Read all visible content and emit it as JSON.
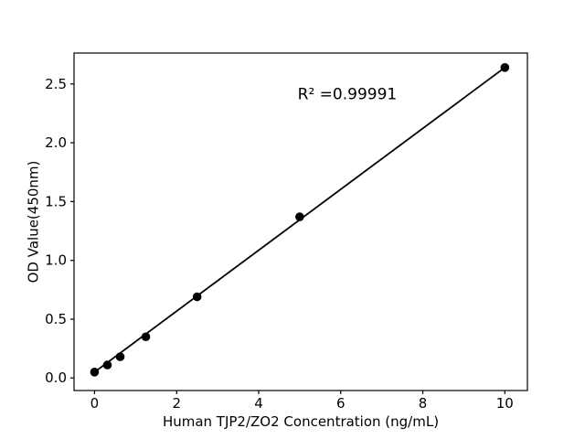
{
  "figure": {
    "background": "#ffffff",
    "foreground": "#000000"
  },
  "chart_data": {
    "type": "scatter",
    "title": "",
    "xlabel": "Human TJP2/ZO2 Concentration (ng/mL)",
    "ylabel": "OD Value(450nm)",
    "annotation": {
      "text": "R² =0.99991",
      "x": 6.16,
      "y": 2.37
    },
    "xlim": [
      -0.5,
      10.55
    ],
    "ylim": [
      -0.107,
      2.763
    ],
    "x_ticks": {
      "values": [
        0,
        2,
        4,
        6,
        8,
        10
      ],
      "labels": [
        "0",
        "2",
        "4",
        "6",
        "8",
        "10"
      ]
    },
    "y_ticks": {
      "values": [
        0,
        0.5,
        1,
        1.5,
        2,
        2.5
      ],
      "labels": [
        "0.0",
        "0.5",
        "1.0",
        "1.5",
        "2.0",
        "2.5"
      ]
    },
    "grid": false,
    "legend": false,
    "series": [
      {
        "name": "standard-curve-points",
        "marker": "circle",
        "color": "#000000",
        "x": [
          0,
          0.3125,
          0.625,
          1.25,
          2.5,
          5,
          10
        ],
        "y": [
          0.05,
          0.11,
          0.18,
          0.35,
          0.69,
          1.37,
          2.64
        ]
      }
    ],
    "fit_line": {
      "color": "#000000",
      "x": [
        0,
        10
      ],
      "y": [
        0.05,
        2.64
      ]
    }
  }
}
